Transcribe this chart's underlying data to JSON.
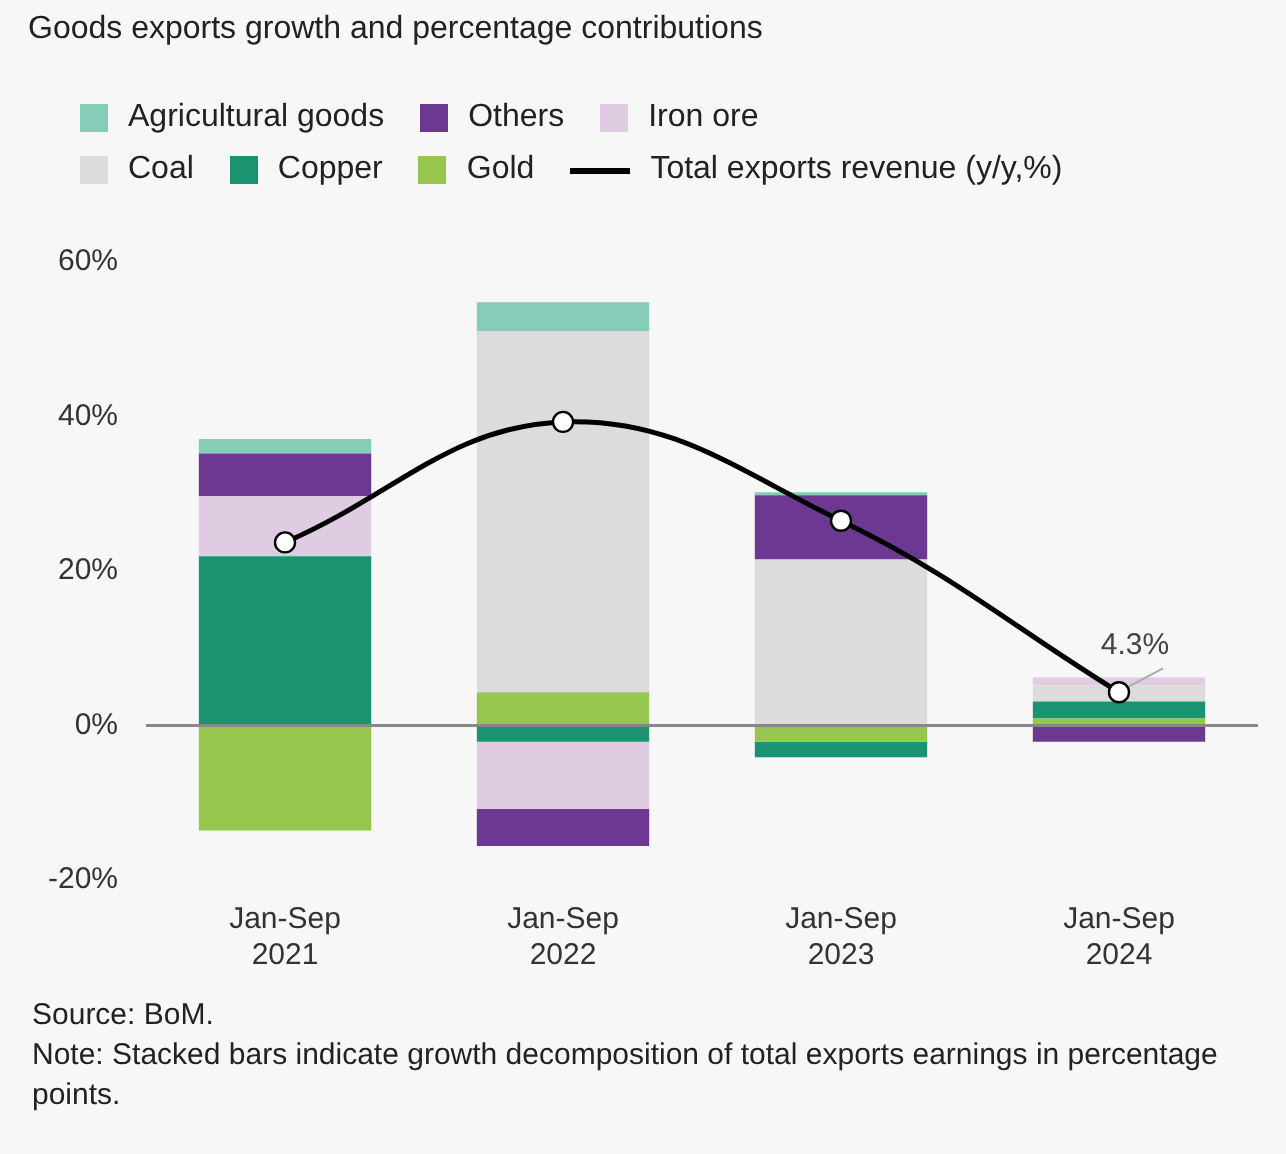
{
  "chart_data": {
    "type": "bar",
    "title": "Goods exports growth and percentage contributions",
    "stacked": true,
    "categories": [
      "Jan-Sep 2021",
      "Jan-Sep 2022",
      "Jan-Sep 2023",
      "Jan-Sep 2024"
    ],
    "series": [
      {
        "name": "Gold",
        "color": "#97c64f",
        "values": [
          -13.6,
          4.3,
          -2.1,
          0.9
        ]
      },
      {
        "name": "Copper",
        "color": "#1a9370",
        "values": [
          21.9,
          -2.1,
          -2.0,
          2.2
        ]
      },
      {
        "name": "Coal",
        "color": "#dddcda",
        "values": [
          0,
          46.7,
          21.5,
          2.1
        ]
      },
      {
        "name": "Iron ore",
        "color": "#e0cce2",
        "values": [
          7.8,
          -8.7,
          0,
          1.0
        ]
      },
      {
        "name": "Others",
        "color": "#6c3891",
        "values": [
          5.5,
          -4.8,
          8.3,
          -2.1
        ]
      },
      {
        "name": "Agricultural goods",
        "color": "#85cdb9",
        "values": [
          1.9,
          3.8,
          0.4,
          0
        ]
      },
      {
        "name": "Total exports revenue (y/y,%)",
        "type": "line",
        "color": "#000000",
        "marker": "circle",
        "line_style": "solid",
        "values": [
          23.7,
          39.3,
          26.5,
          4.3
        ],
        "value_labels": [
          null,
          null,
          null,
          "4.3%"
        ]
      }
    ],
    "ylim": [
      -20,
      60
    ],
    "yticks": [
      {
        "value": -20,
        "label": "-20%"
      },
      {
        "value": 0,
        "label": "0%"
      },
      {
        "value": 20,
        "label": "20%"
      },
      {
        "value": 40,
        "label": "40%"
      },
      {
        "value": 60,
        "label": "60%"
      }
    ],
    "legend": "top",
    "annotations": [
      "Source: BoM.",
      "Note: Stacked bars indicate growth decomposition of total exports earnings in percentage points."
    ]
  }
}
